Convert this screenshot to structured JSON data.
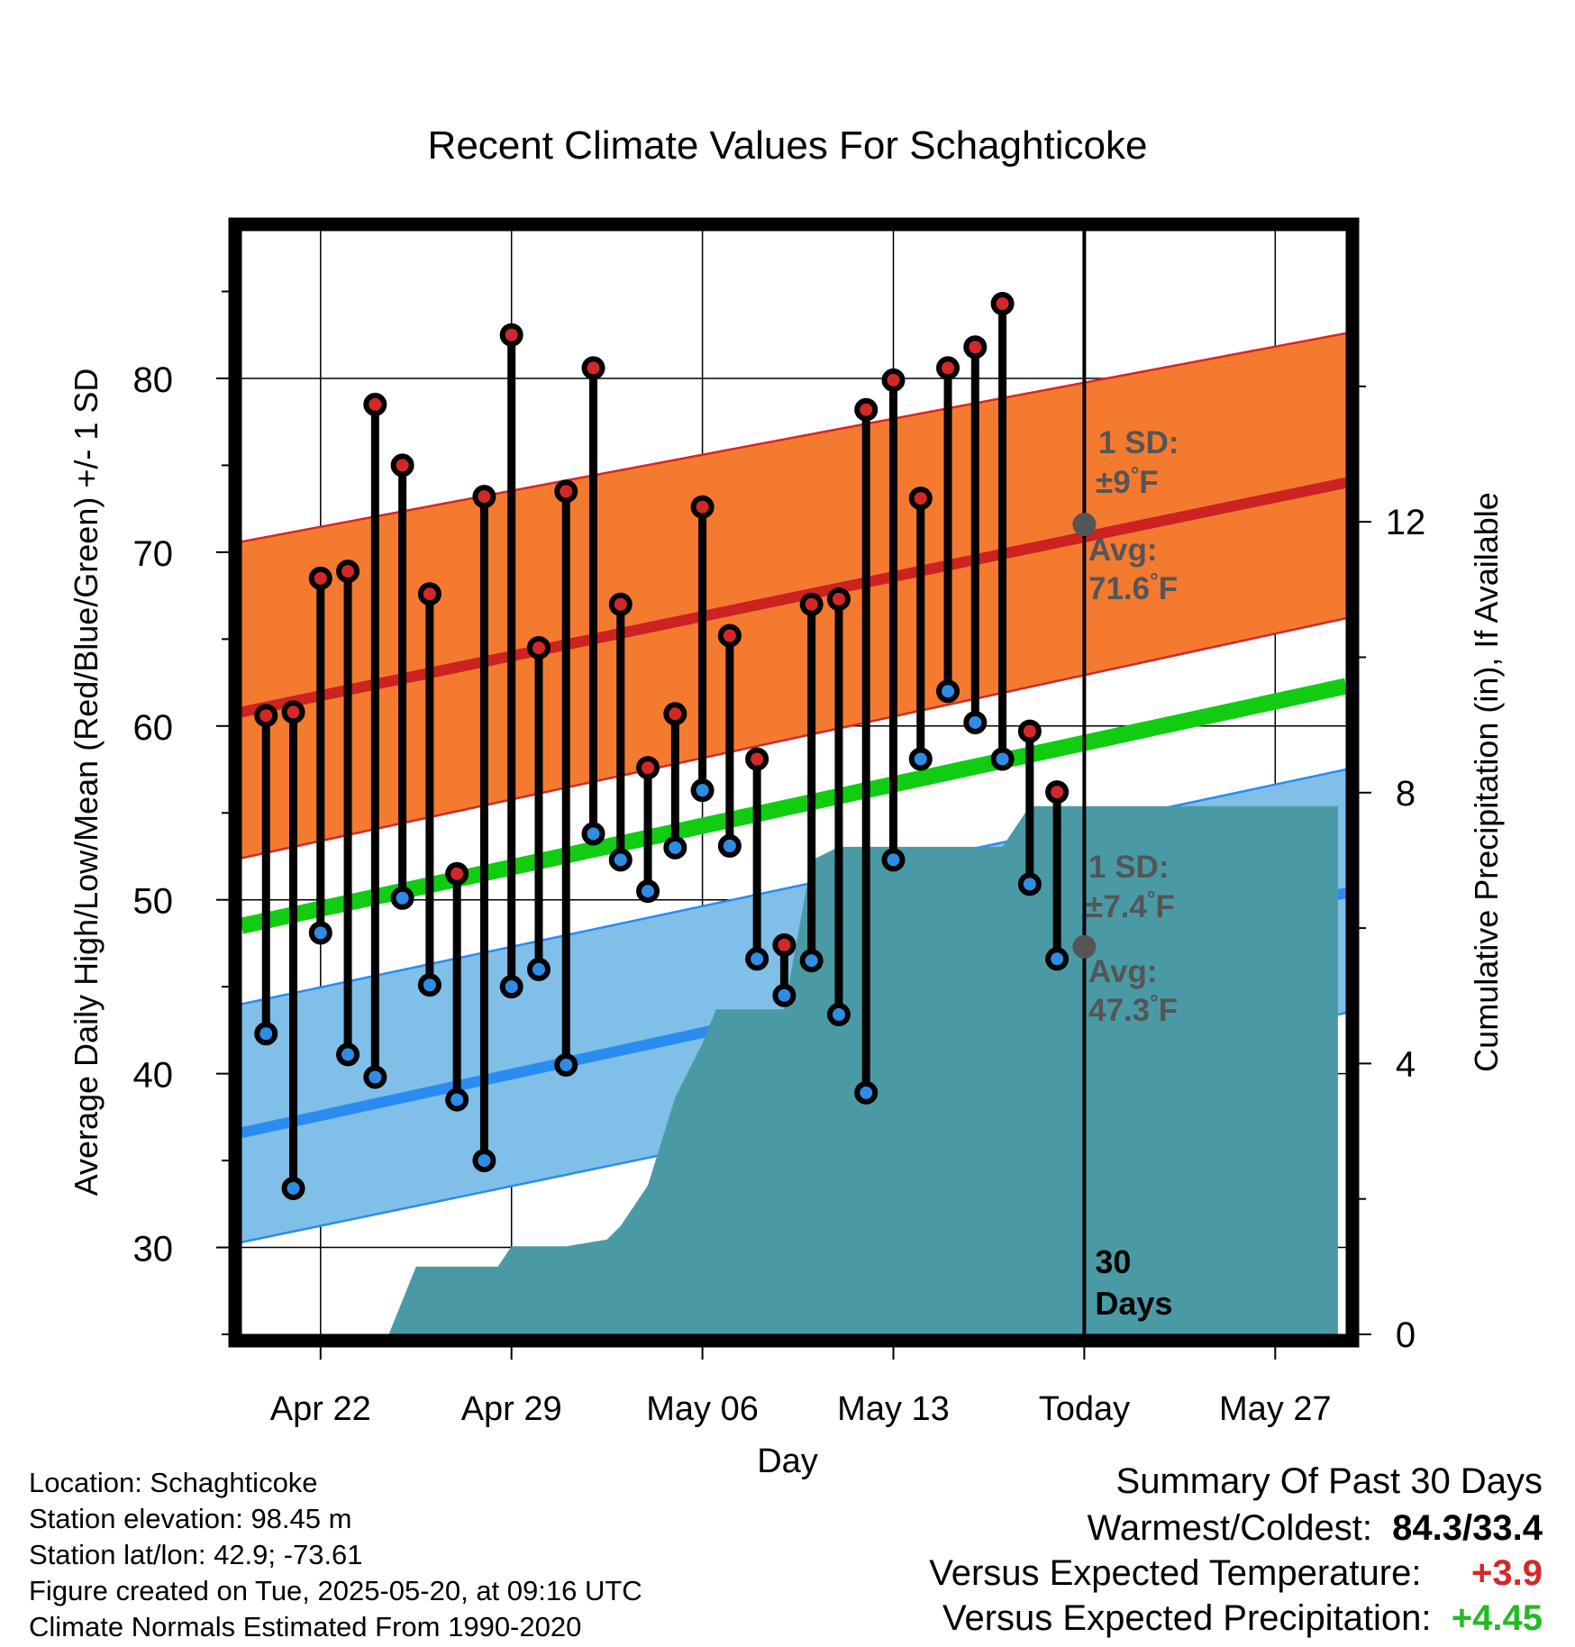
{
  "chart_data": {
    "type": "line",
    "title": "Recent Climate Values For Schaghticoke",
    "xlabel": "Day",
    "ylabel": "Average Daily High/Low/Mean (Red/Blue/Green) +/- 1 SD",
    "y2label": "Cumulative Precipitation (in), If Available",
    "x_tick_labels": [
      "Apr 22",
      "Apr 29",
      "May 06",
      "May 13",
      "Today",
      "May 27"
    ],
    "x_tick_days": [
      1,
      8,
      15,
      22,
      29,
      36
    ],
    "xlim": [
      -1.9,
      38.6
    ],
    "ylim": [
      25,
      88.5
    ],
    "y_ticks": [
      30,
      40,
      50,
      60,
      70,
      80
    ],
    "y2lim": [
      0,
      16.3
    ],
    "y2_ticks": [
      0,
      4,
      8,
      12
    ],
    "today_label": "30\nDays",
    "today_day": 29,
    "days": [
      -1,
      0,
      1,
      2,
      3,
      4,
      5,
      6,
      7,
      8,
      9,
      10,
      11,
      12,
      13,
      14,
      15,
      16,
      17,
      18,
      19,
      20,
      21,
      22,
      23,
      24,
      25,
      26,
      27,
      28
    ],
    "series": [
      {
        "name": "High",
        "color": "#d42828",
        "values": [
          60.6,
          60.8,
          68.5,
          68.9,
          78.5,
          75.0,
          67.6,
          51.5,
          73.2,
          82.5,
          64.5,
          73.5,
          80.6,
          67.0,
          57.6,
          60.7,
          72.6,
          65.2,
          58.1,
          47.4,
          67.0,
          67.3,
          78.2,
          79.9,
          73.1,
          80.6,
          81.8,
          84.3,
          59.7,
          56.2
        ]
      },
      {
        "name": "Low",
        "color": "#2d8de6",
        "values": [
          42.3,
          33.4,
          48.1,
          41.1,
          39.8,
          50.1,
          45.1,
          38.5,
          35.0,
          45.0,
          46.0,
          40.5,
          53.8,
          52.3,
          50.5,
          53.0,
          56.3,
          53.1,
          46.6,
          44.5,
          46.5,
          43.4,
          38.9,
          52.3,
          58.1,
          62.0,
          60.2,
          58.1,
          50.9,
          46.6
        ]
      }
    ],
    "normals": {
      "high_avg": {
        "start": 60.8,
        "end": 74.0,
        "color": "#cc2222"
      },
      "high_band": {
        "upper_start": 70.6,
        "upper_end": 82.6,
        "lower_start": 52.4,
        "lower_end": 66.2,
        "color": "#f47a30"
      },
      "mean_avg": {
        "start": 48.5,
        "end": 62.3,
        "color": "#11cc11"
      },
      "low_avg": {
        "start": 36.6,
        "end": 50.4,
        "color": "#2a8cf0"
      },
      "low_band": {
        "upper_start": 44.0,
        "upper_end": 57.5,
        "lower_start": 30.3,
        "lower_end": 43.5,
        "color": "#80bfe8"
      }
    },
    "precip": {
      "color": "#4a9aa5",
      "points": [
        [
          3.5,
          0
        ],
        [
          4.5,
          1.0
        ],
        [
          6.5,
          1.0
        ],
        [
          7.5,
          1.0
        ],
        [
          8.0,
          1.3
        ],
        [
          10.0,
          1.3
        ],
        [
          11.5,
          1.4
        ],
        [
          12.0,
          1.6
        ],
        [
          13.0,
          2.2
        ],
        [
          14.0,
          3.5
        ],
        [
          15.0,
          4.3
        ],
        [
          15.5,
          4.8
        ],
        [
          17.0,
          4.8
        ],
        [
          18.0,
          4.8
        ],
        [
          19.0,
          7.0
        ],
        [
          20.0,
          7.2
        ],
        [
          21.0,
          7.2
        ],
        [
          22.0,
          7.2
        ],
        [
          24.0,
          7.2
        ],
        [
          25.0,
          7.2
        ],
        [
          26.0,
          7.2
        ],
        [
          27.0,
          7.8
        ],
        [
          28.0,
          7.8
        ],
        [
          38.3,
          7.8
        ]
      ]
    },
    "annotations": {
      "high_sd": "1 SD:",
      "high_sd_val": "±9",
      "high_sd_unit": "°F",
      "high_avg_label": "Avg:",
      "high_avg_val": "71.6",
      "high_avg_unit": "°F",
      "high_avg_point": 71.6,
      "low_sd": "1 SD:",
      "low_sd_val": "±7.4",
      "low_sd_unit": "°F",
      "low_avg_label": "Avg:",
      "low_avg_val": "47.3",
      "low_avg_unit": "°F",
      "low_avg_point": 47.3,
      "marker_color": "#555555"
    },
    "grid": true,
    "legend": "none"
  },
  "info": {
    "location": "Location: Schaghticoke",
    "elevation": "Station elevation: 98.45 m",
    "latlon": "Station lat/lon: 42.9; -73.61",
    "created": "Figure created on Tue, 2025-05-20, at 09:16 UTC",
    "normals": "Climate Normals Estimated From 1990-2020"
  },
  "summary": {
    "title": "Summary Of Past 30 Days",
    "warm_cold_label": "Warmest/Coldest:",
    "warm_cold_value": "84.3/33.4",
    "temp_label": "Versus Expected Temperature:",
    "temp_value": "+3.9",
    "temp_color": "#d42828",
    "precip_label": "Versus Expected Precipitation:",
    "precip_value": "+4.45",
    "precip_color": "#22bb22"
  }
}
